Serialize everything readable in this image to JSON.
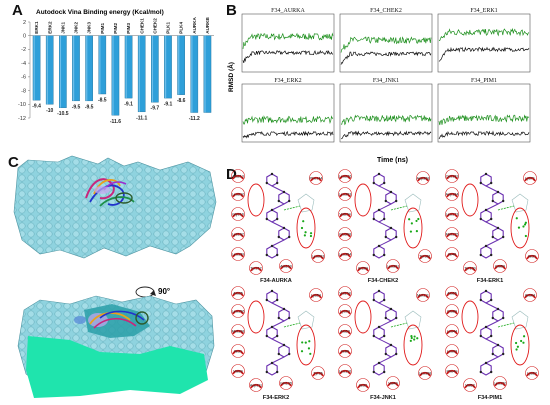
{
  "panels": {
    "A": "A",
    "B": "B",
    "C": "C",
    "D": "D"
  },
  "panelA": {
    "title": "Autodock Vina Binding energy (Kcal/mol)",
    "chart_data": {
      "type": "bar",
      "title": "Autodock Vina Binding energy (Kcal/mol)",
      "categories": [
        "ERK1",
        "ERK2",
        "JNK1",
        "JNK2",
        "JNK3",
        "PIM1",
        "PIM2",
        "PIM3",
        "CHEK1",
        "CHEK2",
        "PLK1",
        "PLK4",
        "AURKA",
        "AURKB"
      ],
      "values": [
        -9.4,
        -10,
        -10.5,
        -9.5,
        -9.5,
        -8.5,
        -11.6,
        -9.1,
        -11.1,
        -9.7,
        -9.1,
        -8.6,
        -11.2,
        -11.2
      ],
      "value_labels": [
        "-9.4",
        "-10",
        "-10.5",
        "-9.5",
        "-9.5",
        "-8.5",
        "-11.6",
        "-9.1",
        "-11.1",
        "-9.7",
        "-9.1",
        "-8.6",
        "-11.2",
        ""
      ],
      "ylim": [
        -12,
        2
      ],
      "yticks": [
        2,
        0,
        -2,
        -4,
        -6,
        -8,
        -10,
        -12
      ],
      "bar_color": "#2e9fd9"
    }
  },
  "panelB": {
    "ylabel": "RMSD (Å)",
    "xlabel": "Time (ns)",
    "titles": [
      "F34_AURKA",
      "F34_CHEK2",
      "F34_ERK1",
      "F34_ERK2",
      "F34_JNK1",
      "F34_PIM1"
    ],
    "colors": {
      "complex": "#1d8f1d",
      "ligand": "#111111"
    }
  },
  "panelC": {
    "rotation_label": "90°"
  },
  "panelD": {
    "captions": [
      "F34-AURKA",
      "F34-CHEK2",
      "F34-ERK1",
      "F34-ERK2",
      "F34-JNK1",
      "F34-PIM1"
    ],
    "residues": [
      [
        "Ala213",
        "Leu210",
        "Gly216",
        "Lys162",
        "Leu139",
        "Phe144",
        "Leu263",
        "Ala160",
        "Tyr212"
      ],
      [
        "Leu226",
        "Leu303",
        "Val234",
        "Glu308",
        "Leu354",
        "Asp368",
        "Tyr381",
        "Leu301",
        "Ile299"
      ],
      [
        "Cys183",
        "Asp184",
        "Leu173",
        "Met125",
        "Ile48",
        "Lys71",
        "Ile31",
        "Glu50",
        "Tyr130"
      ],
      [
        "Ala35",
        "Leu156",
        "Met108",
        "Ile31",
        "Val39",
        "Lys54",
        "Tyr36",
        "Gln105",
        "Asp111"
      ],
      [
        "Val158",
        "Lys93",
        "Ala53",
        "Ile86",
        "Leu110",
        "Met111",
        "Leu168",
        "Val40",
        "Ile32"
      ],
      [
        "Ala65",
        "Glu89",
        "Leu44",
        "Leu93",
        "Phe49",
        "Ile104",
        "Lys67",
        "Leu120",
        "Val52"
      ]
    ]
  }
}
